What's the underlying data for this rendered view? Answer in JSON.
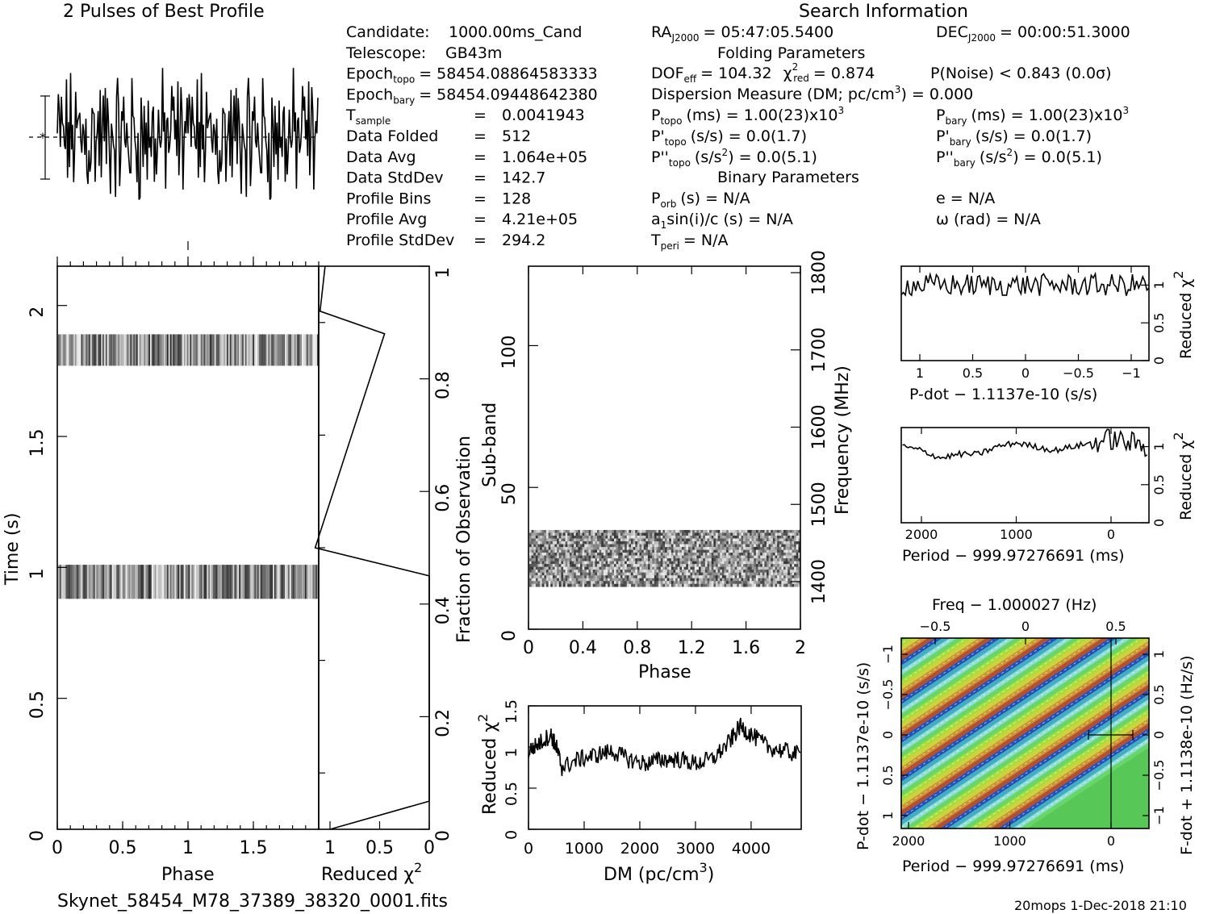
{
  "header": {
    "profile_title": "2 Pulses of Best Profile",
    "search_title": "Search Information",
    "folding_title": "Folding Parameters",
    "binary_title": "Binary Parameters"
  },
  "info_left": [
    {
      "label": "Candidate:",
      "value": "1000.00ms_Cand"
    },
    {
      "label": "Telescope:",
      "value": "GB43m"
    },
    {
      "label": "Epoch",
      "sub": "topo",
      "value": "= 58454.08864583333"
    },
    {
      "label": "Epoch",
      "sub": "bary",
      "value": "= 58454.09448642380"
    },
    {
      "label": "T",
      "sub": "sample",
      "value": "0.0041943"
    },
    {
      "label": "Data Folded",
      "value": "512"
    },
    {
      "label": "Data Avg",
      "value": "1.064e+05"
    },
    {
      "label": "Data StdDev",
      "value": "142.7"
    },
    {
      "label": "Profile Bins",
      "value": "128"
    },
    {
      "label": "Profile Avg",
      "value": "4.21e+05"
    },
    {
      "label": "Profile StdDev",
      "value": "294.2"
    }
  ],
  "info_right": {
    "ra": "RA",
    "ra_sub": "J2000",
    "ra_value": "= 05:47:05.5400",
    "dec": "DEC",
    "dec_sub": "J2000",
    "dec_value": "= 00:00:51.3000",
    "dof_line": "DOF",
    "dof_sub": "eff",
    "dof_value": "= 104.32",
    "chi_label": "χ",
    "chi_sub": "red",
    "chi_value": "= 0.874",
    "pnoise": "P(Noise) < 0.843   (0.0σ)",
    "dm_line": "Dispersion Measure (DM; pc/cm",
    "dm_end": ") = 0.000",
    "ptopo": "P",
    "ptopo_sub": "topo",
    "ptopo_value": "(ms) =   1.00(23)x10",
    "pbary": "P",
    "pbary_sub": "bary",
    "pbary_value": "(ms) =   1.00(23)x10",
    "pdtopo": "P'",
    "pdtopo_value": "(s/s) =   0.0(1.7)",
    "pdbary": "P'",
    "pdbary_value": "(s/s) =   0.0(1.7)",
    "pddtopo": "P''",
    "pddtopo_value": "(s/s",
    "pddtopo_value2": ") =   0.0(5.1)",
    "pddbary": "P''",
    "pddbary_value": "(s/s",
    "pddbary_value2": ") =   0.0(5.1)",
    "porb": "P",
    "porb_sub": "orb",
    "porb_value": "(s) = N/A",
    "e_value": "e = N/A",
    "asini": "a",
    "asini_sub": "1",
    "asini_value": "sin(i)/c (s) = N/A",
    "omega_value": "ω (rad) = N/A",
    "tperi": "T",
    "tperi_sub": "peri",
    "tperi_value": "= N/A"
  },
  "footer": {
    "filename": "Skynet_58454_M78_37389_38320_0001.fits",
    "stamp": "20mops   1-Dec-2018 21:10"
  },
  "chart_data": [
    {
      "id": "profile",
      "type": "line",
      "title": "2 Pulses of Best Profile",
      "x": [
        0,
        2
      ],
      "note_values": "noise-like profile, 2 pulses of 128 bins"
    },
    {
      "id": "time_phase",
      "type": "heatmap",
      "xlabel": "Phase",
      "ylabel": "Time (s)",
      "xlim": [
        0,
        2
      ],
      "ylim": [
        0,
        2.15
      ],
      "xticks": [
        "0",
        "0.5",
        "1",
        "1.5"
      ],
      "yticks": [
        "0",
        "0.5",
        "1",
        "1.5",
        "2"
      ],
      "bands_time": [
        [
          0.88,
          1.01
        ],
        [
          1.77,
          1.89
        ]
      ]
    },
    {
      "id": "time_chi2",
      "type": "line",
      "xlabel": "Reduced χ",
      "ylabel": "Fraction of Observation",
      "xticks": [
        "1",
        "0.5",
        "0"
      ],
      "yticks": [
        "0",
        "0.2",
        "0.4",
        "0.6",
        "0.8",
        "1"
      ],
      "x_reduced_chi2": [
        1.0,
        0.0,
        0.0,
        1.15,
        0.45,
        1.1,
        1.05
      ],
      "y_fraction": [
        0.0,
        0.05,
        0.45,
        0.5,
        0.88,
        0.92,
        1.0
      ]
    },
    {
      "id": "subband_phase",
      "type": "heatmap",
      "xlabel": "Phase",
      "ylabel": "Sub-band",
      "y2label": "Frequency (MHz)",
      "xlim": [
        0,
        2
      ],
      "ylim": [
        0,
        128
      ],
      "xticks": [
        "0",
        "0.4",
        "0.8",
        "1.2",
        "1.6",
        "2"
      ],
      "yticks": [
        "0",
        "50",
        "100"
      ],
      "y2ticks": [
        "1400",
        "1500",
        "1600",
        "1700",
        "1800"
      ],
      "band_subbands": [
        15,
        35
      ]
    },
    {
      "id": "dm_chi2",
      "type": "line",
      "xlabel": "DM (pc/cm",
      "ylabel": "Reduced χ",
      "xlim": [
        0,
        4900
      ],
      "ylim": [
        0,
        1.5
      ],
      "xticks": [
        "0",
        "1000",
        "2000",
        "3000",
        "4000"
      ],
      "yticks": [
        "0",
        "0.5",
        "1",
        "1.5"
      ],
      "x": [
        0,
        200,
        400,
        500,
        600,
        900,
        1200,
        1500,
        1800,
        2100,
        2400,
        2700,
        3000,
        3300,
        3600,
        3800,
        4000,
        4300,
        4600,
        4900
      ],
      "y": [
        0.95,
        1.05,
        1.15,
        1.0,
        0.75,
        0.85,
        0.9,
        0.95,
        0.85,
        0.8,
        0.85,
        0.85,
        0.8,
        0.85,
        1.05,
        1.25,
        1.15,
        1.0,
        0.95,
        0.9
      ]
    },
    {
      "id": "pdot_chi2",
      "type": "line",
      "xlabel": "P-dot − 1.1137e-10 (s/s)",
      "ylabel": "Reduced χ",
      "xticks": [
        "1",
        "0.5",
        "0",
        "−0.5",
        "−1"
      ],
      "yticks": [
        "0",
        "0.5",
        "1"
      ],
      "ylim": [
        0,
        1.25
      ],
      "values_level": 1.0
    },
    {
      "id": "period_chi2",
      "type": "line",
      "xlabel": "Period − 999.97276691 (ms)",
      "ylabel": "Reduced χ",
      "xticks": [
        "2000",
        "1000",
        "0"
      ],
      "yticks": [
        "0",
        "0.5",
        "1"
      ],
      "ylim": [
        0,
        1.25
      ],
      "x": [
        2200,
        2000,
        1800,
        1600,
        1400,
        1200,
        1000,
        800,
        600,
        400,
        200,
        0,
        -200,
        -400
      ],
      "y": [
        1.0,
        0.95,
        0.85,
        0.9,
        0.9,
        1.0,
        1.05,
        1.0,
        0.95,
        1.0,
        1.05,
        1.1,
        1.05,
        1.0
      ]
    },
    {
      "id": "pdot_period",
      "type": "heatmap",
      "xlabel": "Period − 999.97276691 (ms)",
      "ylabel": "P-dot − 1.1137e-10 (s/s)",
      "x2label": "Freq − 1.000027 (Hz)",
      "y2label": "F-dot + 1.1138e-10 (Hz/s)",
      "xticks": [
        "2000",
        "1000",
        "0"
      ],
      "yticks": [
        "1",
        "0.5",
        "0",
        "−0.5",
        "−1"
      ],
      "x2ticks": [
        "−0.5",
        "0",
        "0.5"
      ],
      "y2ticks": [
        "−1",
        "−0.5",
        "0",
        "0.5",
        "1"
      ]
    }
  ]
}
